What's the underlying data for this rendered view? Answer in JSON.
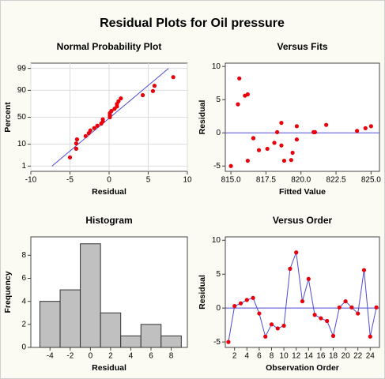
{
  "title": "Residual Plots for Oil pressure",
  "chart_data": [
    {
      "type": "probability",
      "title": "Normal Probability Plot",
      "x_label": "Residual",
      "y_label": "Percent",
      "x": [
        -5,
        -4.2,
        -4.2,
        -4.1,
        -3,
        -2.6,
        -2.4,
        -1.9,
        -1.5,
        -1,
        -0.8,
        -0.8,
        0.1,
        0.1,
        0.1,
        0.3,
        0.7,
        1,
        1,
        1.2,
        1.5,
        4.3,
        5.6,
        5.8,
        8.2
      ],
      "y": [
        2.8,
        6.7,
        10.6,
        14.6,
        18.5,
        22.4,
        26.4,
        30.3,
        34.3,
        38.2,
        42.1,
        46.1,
        50,
        53.9,
        57.9,
        61.8,
        65.7,
        69.7,
        73.6,
        77.6,
        81.5,
        85.4,
        89.4,
        93.3,
        97.2
      ],
      "color": "#e8000b",
      "fit_line": {
        "x": [
          -7.3,
          7.6
        ],
        "y": [
          1,
          99
        ],
        "color": "#4b4bd6"
      },
      "xlim": [
        -10,
        10
      ],
      "xticks": [
        -10,
        -5,
        0,
        5,
        10
      ],
      "ylim": [
        0.5,
        99.5
      ],
      "yticks": [
        1,
        10,
        50,
        90,
        99
      ],
      "yscale": "probability",
      "grid": true
    },
    {
      "type": "scatter",
      "title": "Versus Fits",
      "x_label": "Fitted Value",
      "y_label": "Residual",
      "x": [
        815.0,
        824.0,
        824.6,
        821.8,
        818.6,
        816.6,
        816.2,
        817.6,
        819.4,
        817.0,
        816.2,
        815.6,
        825.0,
        815.5,
        819.7,
        818.1,
        818.6,
        819.3,
        818.3,
        819.7,
        821.0,
        816.6,
        816.0,
        818.8,
        820.9
      ],
      "y": [
        -5,
        0.3,
        0.7,
        1.2,
        1.5,
        -0.8,
        -4.2,
        -2.4,
        -3,
        -2.6,
        5.8,
        8.2,
        1,
        4.3,
        -1,
        -1.5,
        -1.9,
        -4.1,
        0.1,
        1,
        0.1,
        -0.8,
        5.6,
        -4.2,
        0.1
      ],
      "color": "#e8000b",
      "hline": 0,
      "hline_color": "#4b4bd6",
      "xlim": [
        814.6,
        825.6
      ],
      "xticks": [
        {
          "value": 815,
          "label": "815.0"
        },
        {
          "value": 817.5,
          "label": "817.5"
        },
        {
          "value": 820,
          "label": "820.0"
        },
        {
          "value": 822.5,
          "label": "822.5"
        },
        {
          "value": 825,
          "label": "825.0"
        }
      ],
      "ylim": [
        -5.8,
        10.5
      ],
      "yticks": [
        -5,
        0,
        5,
        10
      ]
    },
    {
      "type": "histogram",
      "title": "Histogram",
      "x_label": "Residual",
      "y_label": "Frequency",
      "bins": [
        -5,
        -3,
        -1,
        1,
        3,
        5,
        7,
        9
      ],
      "values": [
        4,
        5,
        9,
        3,
        1,
        2,
        1
      ],
      "color": "#c0c0c0",
      "xlim": [
        -5.9,
        9.6
      ],
      "xticks": [
        -4,
        -2,
        0,
        2,
        4,
        6,
        8
      ],
      "ylim": [
        0,
        9.6
      ],
      "yticks": [
        0,
        2,
        4,
        6,
        8
      ]
    },
    {
      "type": "line",
      "title": "Versus Order",
      "x_label": "Observation Order",
      "y_label": "Residual",
      "x": [
        1,
        2,
        3,
        4,
        5,
        6,
        7,
        8,
        9,
        10,
        11,
        12,
        13,
        14,
        15,
        16,
        17,
        18,
        19,
        20,
        21,
        22,
        23,
        24,
        25
      ],
      "y": [
        -5,
        0.3,
        0.7,
        1.2,
        1.5,
        -0.8,
        -4.2,
        -2.4,
        -3,
        -2.6,
        5.8,
        8.2,
        1,
        4.3,
        -1,
        -1.5,
        -1.9,
        -4.1,
        0.1,
        1,
        0.1,
        -0.8,
        5.6,
        -4.2,
        0.1
      ],
      "color": "#e8000b",
      "line_color": "#4b4bd6",
      "hline": 0,
      "hline_color": "#4b4bd6",
      "xlim": [
        0.5,
        25.5
      ],
      "xticks": [
        2,
        4,
        6,
        8,
        10,
        12,
        14,
        16,
        18,
        20,
        22,
        24
      ],
      "ylim": [
        -5.8,
        10.5
      ],
      "yticks": [
        -5,
        0,
        5,
        10
      ]
    }
  ]
}
